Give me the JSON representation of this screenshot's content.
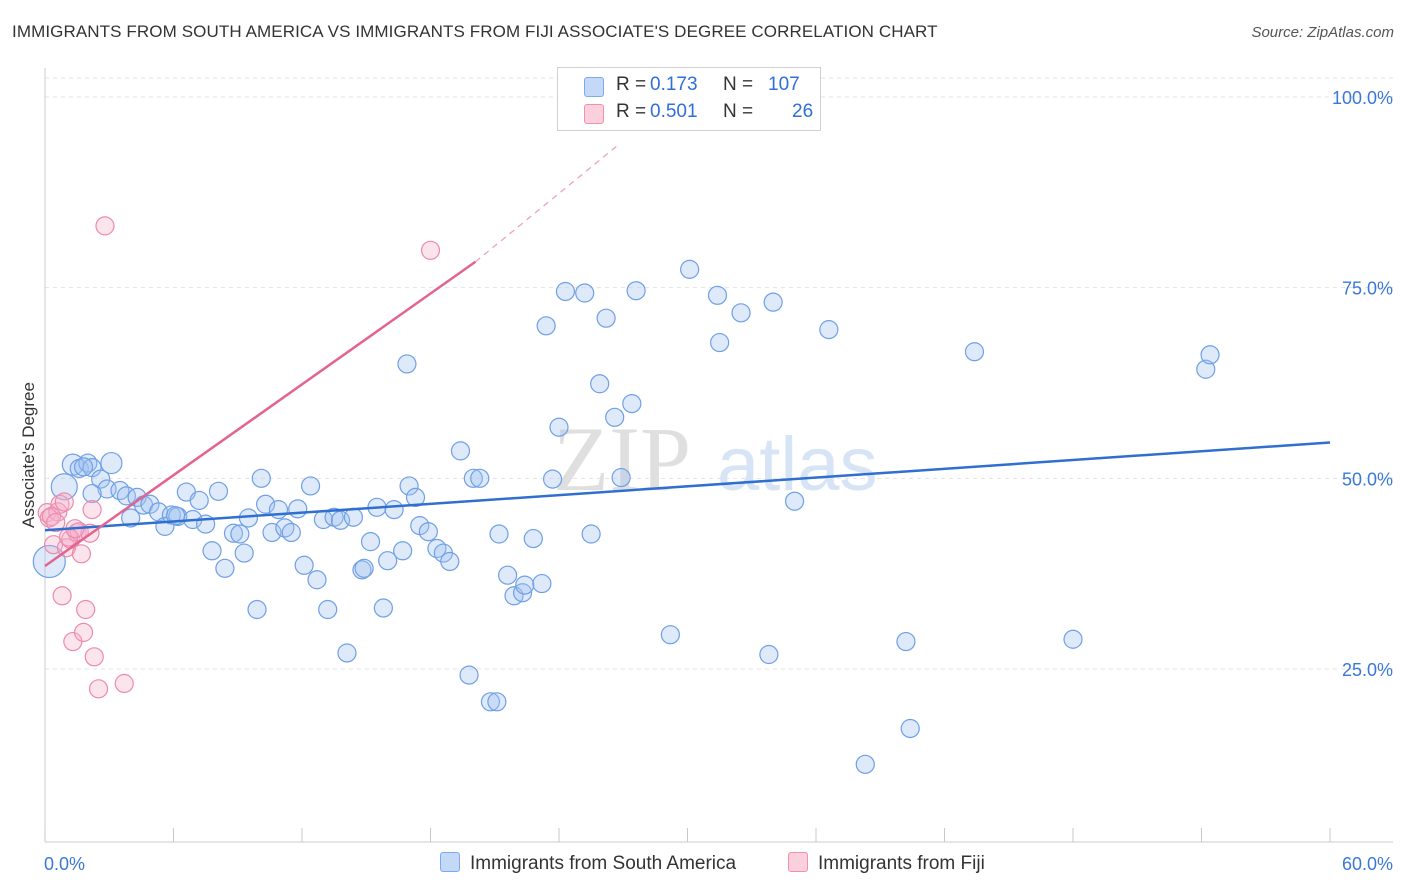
{
  "title": "IMMIGRANTS FROM SOUTH AMERICA VS IMMIGRANTS FROM FIJI ASSOCIATE'S DEGREE CORRELATION CHART",
  "source": "Source: ZipAtlas.com",
  "watermark": {
    "zip": "ZIP",
    "atlas": "atlas"
  },
  "legend": {
    "rows": [
      {
        "r_label": "R =",
        "r_value": "0.173",
        "n_label": "N =",
        "n_value": "107",
        "color": "#a9c8f5"
      },
      {
        "r_label": "R =",
        "r_value": "0.501",
        "n_label": "N =",
        "n_value": "26",
        "color": "#f8b9cc"
      }
    ]
  },
  "bottom_legend": [
    {
      "label": "Immigrants from South America",
      "color": "#a9c8f5"
    },
    {
      "label": "Immigrants from Fiji",
      "color": "#f8b9cc"
    }
  ],
  "chart_data": {
    "type": "scatter",
    "title": "IMMIGRANTS FROM SOUTH AMERICA VS IMMIGRANTS FROM FIJI ASSOCIATE'S DEGREE CORRELATION CHART",
    "xlabel": "",
    "ylabel": "Associate's Degree",
    "xlim": [
      0,
      60
    ],
    "ylim": [
      3,
      100
    ],
    "x_tick_labels": [
      {
        "value": 0,
        "label": "0.0%"
      },
      {
        "value": 60,
        "label": "60.0%"
      }
    ],
    "y_tick_labels": [
      {
        "value": 25,
        "label": "25.0%"
      },
      {
        "value": 50,
        "label": "50.0%"
      },
      {
        "value": 75,
        "label": "75.0%"
      },
      {
        "value": 100,
        "label": "100.0%"
      }
    ],
    "x_minor_ticks": [
      0,
      6,
      12,
      18,
      24,
      30,
      36,
      42,
      48,
      54,
      60
    ],
    "grid": true,
    "series": [
      {
        "name": "Immigrants from South America",
        "color": "#7aaaf0",
        "points": [
          [
            0.2,
            39.1
          ],
          [
            0.9,
            48.9
          ],
          [
            1.3,
            51.8
          ],
          [
            1.6,
            51.3
          ],
          [
            2.0,
            52.0
          ],
          [
            2.2,
            51.4
          ],
          [
            2.6,
            49.9
          ],
          [
            2.9,
            48.6
          ],
          [
            3.1,
            52.0
          ],
          [
            3.5,
            48.4
          ],
          [
            3.8,
            47.7
          ],
          [
            4.0,
            44.8
          ],
          [
            4.3,
            47.5
          ],
          [
            4.6,
            46.5
          ],
          [
            4.9,
            46.6
          ],
          [
            5.3,
            45.6
          ],
          [
            5.6,
            43.7
          ],
          [
            5.9,
            45.2
          ],
          [
            6.2,
            45.0
          ],
          [
            6.6,
            48.2
          ],
          [
            6.9,
            44.6
          ],
          [
            7.2,
            47.1
          ],
          [
            7.5,
            44.0
          ],
          [
            7.8,
            40.5
          ],
          [
            8.1,
            48.3
          ],
          [
            8.4,
            38.2
          ],
          [
            8.8,
            42.8
          ],
          [
            9.1,
            42.7
          ],
          [
            9.3,
            40.2
          ],
          [
            9.5,
            44.8
          ],
          [
            9.9,
            32.8
          ],
          [
            10.1,
            50.0
          ],
          [
            10.3,
            46.6
          ],
          [
            10.6,
            42.9
          ],
          [
            10.9,
            45.9
          ],
          [
            11.2,
            43.5
          ],
          [
            11.5,
            42.9
          ],
          [
            11.8,
            46.0
          ],
          [
            12.1,
            38.6
          ],
          [
            12.4,
            49.0
          ],
          [
            12.7,
            36.7
          ],
          [
            13.0,
            44.6
          ],
          [
            13.2,
            32.8
          ],
          [
            13.5,
            44.9
          ],
          [
            13.8,
            44.5
          ],
          [
            14.1,
            27.1
          ],
          [
            14.4,
            44.9
          ],
          [
            14.8,
            38.0
          ],
          [
            14.9,
            38.2
          ],
          [
            15.2,
            41.7
          ],
          [
            15.5,
            46.2
          ],
          [
            15.8,
            33.0
          ],
          [
            16.0,
            39.2
          ],
          [
            16.3,
            45.9
          ],
          [
            16.7,
            40.5
          ],
          [
            17.0,
            49.0
          ],
          [
            17.3,
            47.5
          ],
          [
            17.5,
            43.8
          ],
          [
            17.9,
            43.0
          ],
          [
            18.3,
            40.8
          ],
          [
            18.6,
            40.2
          ],
          [
            18.9,
            39.1
          ],
          [
            19.4,
            53.6
          ],
          [
            19.8,
            24.2
          ],
          [
            20.0,
            50.0
          ],
          [
            20.3,
            50.0
          ],
          [
            20.8,
            20.7
          ],
          [
            21.1,
            20.7
          ],
          [
            21.2,
            42.7
          ],
          [
            21.6,
            37.3
          ],
          [
            21.9,
            34.6
          ],
          [
            22.3,
            35.0
          ],
          [
            22.4,
            36.0
          ],
          [
            22.8,
            42.1
          ],
          [
            23.2,
            36.2
          ],
          [
            23.4,
            70.0
          ],
          [
            23.7,
            49.9
          ],
          [
            24.0,
            56.7
          ],
          [
            24.3,
            74.5
          ],
          [
            25.2,
            74.3
          ],
          [
            25.5,
            42.7
          ],
          [
            25.9,
            62.4
          ],
          [
            26.2,
            71.0
          ],
          [
            26.6,
            58.0
          ],
          [
            26.9,
            50.1
          ],
          [
            27.4,
            59.8
          ],
          [
            27.6,
            74.6
          ],
          [
            29.2,
            29.5
          ],
          [
            30.1,
            77.4
          ],
          [
            31.5,
            67.8
          ],
          [
            31.4,
            74.0
          ],
          [
            32.5,
            71.7
          ],
          [
            33.8,
            26.9
          ],
          [
            34.0,
            73.1
          ],
          [
            35.0,
            47.0
          ],
          [
            36.6,
            69.5
          ],
          [
            38.3,
            12.5
          ],
          [
            40.2,
            28.6
          ],
          [
            40.4,
            17.2
          ],
          [
            43.4,
            66.6
          ],
          [
            48.0,
            28.9
          ],
          [
            54.2,
            64.3
          ],
          [
            54.4,
            66.2
          ],
          [
            16.9,
            65.0
          ],
          [
            6.1,
            45.1
          ],
          [
            1.8,
            51.5
          ],
          [
            2.2,
            48.0
          ]
        ],
        "trendline": {
          "x": [
            0,
            60
          ],
          "y": [
            43.2,
            54.7
          ]
        }
      },
      {
        "name": "Immigrants from Fiji",
        "color": "#f08fb0",
        "points": [
          [
            0.1,
            45.5
          ],
          [
            0.2,
            44.8
          ],
          [
            0.4,
            41.3
          ],
          [
            0.6,
            45.6
          ],
          [
            0.7,
            46.6
          ],
          [
            0.8,
            34.6
          ],
          [
            1.0,
            40.9
          ],
          [
            1.2,
            42.0
          ],
          [
            1.3,
            28.6
          ],
          [
            1.5,
            42.9
          ],
          [
            1.6,
            43.0
          ],
          [
            1.7,
            40.1
          ],
          [
            1.8,
            29.8
          ],
          [
            1.9,
            32.8
          ],
          [
            2.1,
            42.8
          ],
          [
            2.2,
            45.9
          ],
          [
            2.3,
            26.6
          ],
          [
            2.5,
            22.4
          ],
          [
            2.8,
            83.1
          ],
          [
            3.7,
            23.1
          ],
          [
            18.0,
            79.9
          ],
          [
            0.3,
            45.0
          ],
          [
            0.5,
            44.2
          ],
          [
            1.1,
            42.3
          ],
          [
            1.4,
            43.4
          ],
          [
            0.9,
            46.9
          ]
        ],
        "trendline": {
          "x": [
            0,
            20.1
          ],
          "y": [
            38.5,
            78.4
          ]
        },
        "trendline_extension": {
          "x": [
            20.1,
            26.8
          ],
          "y": [
            78.4,
            93.8
          ]
        }
      }
    ]
  }
}
